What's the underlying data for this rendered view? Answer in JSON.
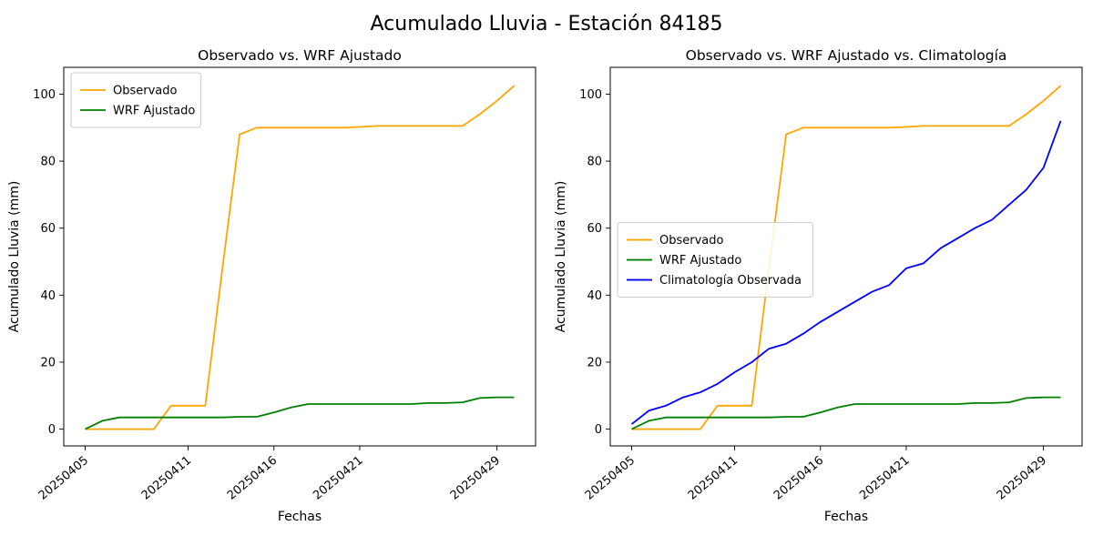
{
  "figure": {
    "title": "Acumulado Lluvia - Estación 84185",
    "background": "#ffffff",
    "text_color": "#000000"
  },
  "chart_data": [
    {
      "type": "line",
      "title": "Observado vs. WRF Ajustado",
      "xlabel": "Fechas",
      "ylabel": "Acumulado Lluvia (mm)",
      "ylim": [
        -5,
        108
      ],
      "yticks": [
        0,
        20,
        40,
        60,
        80,
        100
      ],
      "grid": false,
      "legend_position": "upper-left",
      "x": [
        "20250405",
        "20250406",
        "20250407",
        "20250408",
        "20250409",
        "20250410",
        "20250411",
        "20250412",
        "20250413",
        "20250414",
        "20250415",
        "20250416",
        "20250417",
        "20250418",
        "20250419",
        "20250420",
        "20250421",
        "20250422",
        "20250423",
        "20250424",
        "20250425",
        "20250426",
        "20250427",
        "20250428",
        "20250429",
        "20250430"
      ],
      "xtick_indices": [
        0,
        6,
        11,
        16,
        24
      ],
      "series": [
        {
          "name": "Observado",
          "color": "#ffa500",
          "values": [
            0,
            0,
            0,
            0,
            0,
            7,
            7,
            7,
            48,
            88,
            90,
            90,
            90,
            90,
            90,
            90,
            90.2,
            90.5,
            90.5,
            90.5,
            90.5,
            90.5,
            90.5,
            94,
            98,
            102.5
          ]
        },
        {
          "name": "WRF Ajustado",
          "color": "#008000",
          "values": [
            0,
            2.5,
            3.5,
            3.5,
            3.5,
            3.5,
            3.5,
            3.5,
            3.5,
            3.7,
            3.7,
            5,
            6.5,
            7.5,
            7.5,
            7.5,
            7.5,
            7.5,
            7.5,
            7.5,
            7.8,
            7.8,
            8,
            9.3,
            9.5,
            9.5
          ]
        }
      ]
    },
    {
      "type": "line",
      "title": "Observado vs. WRF Ajustado vs. Climatología",
      "xlabel": "Fechas",
      "ylabel": "Acumulado Lluvia (mm)",
      "ylim": [
        -5,
        108
      ],
      "yticks": [
        0,
        20,
        40,
        60,
        80,
        100
      ],
      "grid": false,
      "legend_position": "center-left",
      "x": [
        "20250405",
        "20250406",
        "20250407",
        "20250408",
        "20250409",
        "20250410",
        "20250411",
        "20250412",
        "20250413",
        "20250414",
        "20250415",
        "20250416",
        "20250417",
        "20250418",
        "20250419",
        "20250420",
        "20250421",
        "20250422",
        "20250423",
        "20250424",
        "20250425",
        "20250426",
        "20250427",
        "20250428",
        "20250429",
        "20250430"
      ],
      "xtick_indices": [
        0,
        6,
        11,
        16,
        24
      ],
      "series": [
        {
          "name": "Observado",
          "color": "#ffa500",
          "values": [
            0,
            0,
            0,
            0,
            0,
            7,
            7,
            7,
            48,
            88,
            90,
            90,
            90,
            90,
            90,
            90,
            90.2,
            90.5,
            90.5,
            90.5,
            90.5,
            90.5,
            90.5,
            94,
            98,
            102.5
          ]
        },
        {
          "name": "WRF Ajustado",
          "color": "#008000",
          "values": [
            0,
            2.5,
            3.5,
            3.5,
            3.5,
            3.5,
            3.5,
            3.5,
            3.5,
            3.7,
            3.7,
            5,
            6.5,
            7.5,
            7.5,
            7.5,
            7.5,
            7.5,
            7.5,
            7.5,
            7.8,
            7.8,
            8,
            9.3,
            9.5,
            9.5
          ]
        },
        {
          "name": "Climatología Observada",
          "color": "#0000ff",
          "values": [
            1.5,
            5.5,
            7,
            9.5,
            11,
            13.5,
            17,
            20,
            24,
            25.5,
            28.5,
            32,
            35,
            38,
            41,
            43,
            48,
            49.5,
            54,
            57,
            60,
            62.5,
            67,
            71.5,
            78,
            92
          ]
        }
      ]
    }
  ]
}
